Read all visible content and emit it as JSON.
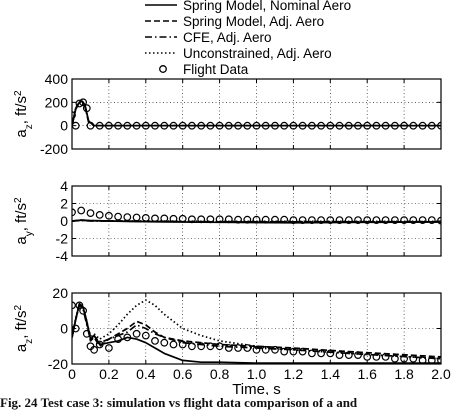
{
  "legend": {
    "placement": "top",
    "entries": [
      {
        "label": "Spring Model, Nominal Aero",
        "style": "solid"
      },
      {
        "label": "Spring Model, Adj. Aero",
        "style": "dashed"
      },
      {
        "label": "CFE, Adj. Aero",
        "style": "dashdot"
      },
      {
        "label": "Unconstrained, Adj. Aero",
        "style": "dotted"
      },
      {
        "label": "Flight Data",
        "style": "circle"
      }
    ]
  },
  "caption": "Fig. 24   Test case 3: simulation vs flight data comparison of a   and",
  "chart_data": [
    {
      "type": "line",
      "panel": "top",
      "ylabel_main": "a",
      "ylabel_sub": "z",
      "ylabel_unit": ", ft/s",
      "ylabel_sup": "2",
      "xlim": [
        0,
        2
      ],
      "ylim": [
        -200,
        400
      ],
      "yticks": [
        -200,
        0,
        200,
        400
      ],
      "xticks": [
        0,
        0.2,
        0.4,
        0.6,
        0.8,
        1.0,
        1.2,
        1.4,
        1.6,
        1.8,
        2.0
      ],
      "grid": true,
      "series": [
        {
          "style": "solid",
          "x": [
            0,
            0.02,
            0.04,
            0.055,
            0.07,
            0.09,
            0.12,
            0.2,
            2.0
          ],
          "y": [
            0,
            140,
            200,
            210,
            180,
            40,
            0,
            0,
            0
          ]
        },
        {
          "style": "dashed",
          "x": [
            0,
            0.02,
            0.04,
            0.055,
            0.07,
            0.09,
            0.12,
            0.2,
            2.0
          ],
          "y": [
            0,
            150,
            205,
            210,
            175,
            35,
            0,
            0,
            0
          ]
        },
        {
          "style": "dashdot",
          "x": [
            0,
            0.02,
            0.04,
            0.055,
            0.07,
            0.09,
            0.12,
            0.2,
            2.0
          ],
          "y": [
            0,
            145,
            200,
            205,
            170,
            30,
            0,
            0,
            0
          ]
        },
        {
          "style": "dotted",
          "x": [
            0,
            0.02,
            0.04,
            0.055,
            0.07,
            0.09,
            0.12,
            0.2,
            2.0
          ],
          "y": [
            0,
            150,
            200,
            210,
            180,
            40,
            0,
            0,
            0
          ]
        }
      ],
      "flight_data": {
        "x": [
          0,
          0.02,
          0.04,
          0.06,
          0.08,
          0.1,
          0.15,
          0.2,
          0.25,
          0.3,
          0.35,
          0.4,
          0.45,
          0.5,
          0.55,
          0.6,
          0.65,
          0.7,
          0.75,
          0.8,
          0.85,
          0.9,
          0.95,
          1.0,
          1.05,
          1.1,
          1.15,
          1.2,
          1.25,
          1.3,
          1.35,
          1.4,
          1.45,
          1.5,
          1.55,
          1.6,
          1.65,
          1.7,
          1.75,
          1.8,
          1.85,
          1.9,
          1.95,
          2.0
        ],
        "y": [
          90,
          0,
          190,
          200,
          150,
          0,
          0,
          0,
          0,
          0,
          0,
          0,
          0,
          0,
          0,
          0,
          0,
          0,
          0,
          0,
          0,
          0,
          0,
          0,
          0,
          0,
          0,
          0,
          0,
          0,
          0,
          0,
          0,
          0,
          0,
          0,
          0,
          0,
          0,
          0,
          0,
          0,
          0,
          0
        ]
      }
    },
    {
      "type": "line",
      "panel": "middle",
      "ylabel_main": "a",
      "ylabel_sub": "y",
      "ylabel_unit": ", ft/s",
      "ylabel_sup": "2",
      "xlim": [
        0,
        2
      ],
      "ylim": [
        -4,
        4
      ],
      "yticks": [
        -4,
        -2,
        0,
        2,
        4
      ],
      "xticks": [
        0,
        0.2,
        0.4,
        0.6,
        0.8,
        1.0,
        1.2,
        1.4,
        1.6,
        1.8,
        2.0
      ],
      "grid": true,
      "series": [
        {
          "style": "solid",
          "x": [
            0,
            0.05,
            0.1,
            0.2,
            0.3,
            0.5,
            0.8,
            1.2,
            1.6,
            2.0
          ],
          "y": [
            0,
            0.1,
            0.05,
            0,
            -0.05,
            -0.1,
            -0.15,
            -0.2,
            -0.15,
            -0.1
          ]
        },
        {
          "style": "dashed",
          "x": [
            0,
            0.05,
            0.1,
            0.2,
            0.4,
            0.8,
            1.2,
            1.6,
            2.0
          ],
          "y": [
            0,
            0.1,
            0.05,
            0,
            -0.05,
            -0.1,
            -0.1,
            -0.1,
            -0.1
          ]
        },
        {
          "style": "dashdot",
          "x": [
            0,
            0.05,
            0.1,
            0.2,
            0.4,
            0.8,
            1.2,
            1.6,
            2.0
          ],
          "y": [
            0,
            0.05,
            0,
            0,
            -0.05,
            -0.1,
            -0.1,
            -0.1,
            -0.1
          ]
        },
        {
          "style": "dotted",
          "x": [
            0,
            0.05,
            0.1,
            0.2,
            0.4,
            0.8,
            1.2,
            1.6,
            2.0
          ],
          "y": [
            0,
            0.1,
            0.05,
            0,
            0,
            -0.05,
            -0.05,
            -0.05,
            -0.05
          ]
        }
      ],
      "flight_data": {
        "x": [
          0,
          0.05,
          0.1,
          0.15,
          0.2,
          0.25,
          0.3,
          0.35,
          0.4,
          0.45,
          0.5,
          0.55,
          0.6,
          0.65,
          0.7,
          0.75,
          0.8,
          0.85,
          0.9,
          0.95,
          1.0,
          1.05,
          1.1,
          1.15,
          1.2,
          1.25,
          1.3,
          1.35,
          1.4,
          1.45,
          1.5,
          1.55,
          1.6,
          1.65,
          1.7,
          1.75,
          1.8,
          1.85,
          1.9,
          1.95,
          2.0
        ],
        "y": [
          1.0,
          1.2,
          0.9,
          0.7,
          0.6,
          0.5,
          0.45,
          0.4,
          0.35,
          0.3,
          0.3,
          0.25,
          0.25,
          0.2,
          0.2,
          0.2,
          0.2,
          0.2,
          0.15,
          0.15,
          0.15,
          0.15,
          0.15,
          0.15,
          0.1,
          0.1,
          0.1,
          0.1,
          0.1,
          0.1,
          0.1,
          0.1,
          0.1,
          0.1,
          0.1,
          0.1,
          0.1,
          0.1,
          0.1,
          0.1,
          0.05
        ]
      }
    },
    {
      "type": "line",
      "panel": "bottom",
      "ylabel_main": "a",
      "ylabel_sub": "z",
      "ylabel_unit": ", ft/s",
      "ylabel_sup": "2",
      "xlabel": "Time, s",
      "xlim": [
        0,
        2
      ],
      "ylim": [
        -20,
        20
      ],
      "yticks": [
        -20,
        0,
        20
      ],
      "xticks": [
        0,
        0.2,
        0.4,
        0.6,
        0.8,
        1.0,
        1.2,
        1.4,
        1.6,
        1.8,
        2.0
      ],
      "xticklabels": [
        "0",
        "0.2",
        "0.4",
        "0.6",
        "0.8",
        "1.0",
        "1.2",
        "1.4",
        "1.6",
        "1.8",
        "2.0"
      ],
      "grid": true,
      "series": [
        {
          "style": "solid",
          "x": [
            0,
            0.02,
            0.04,
            0.06,
            0.08,
            0.1,
            0.12,
            0.15,
            0.2,
            0.25,
            0.3,
            0.35,
            0.4,
            0.45,
            0.5,
            0.55,
            0.6,
            0.7,
            0.8,
            1.0,
            1.2,
            1.5,
            2.0
          ],
          "y": [
            -5,
            5,
            14,
            12,
            4,
            -6,
            -4,
            -9,
            -8,
            -7,
            -5,
            -6,
            -8,
            -11,
            -14,
            -16,
            -18,
            -19,
            -19,
            -19.5,
            -19.5,
            -19.5,
            -19.5
          ]
        },
        {
          "style": "dashed",
          "x": [
            0,
            0.02,
            0.04,
            0.06,
            0.08,
            0.1,
            0.12,
            0.15,
            0.2,
            0.25,
            0.3,
            0.35,
            0.4,
            0.45,
            0.5,
            0.6,
            0.8,
            1.0,
            1.2,
            1.5,
            2.0
          ],
          "y": [
            -5,
            5,
            14,
            12,
            3,
            -7,
            -5,
            -10,
            -6,
            -3,
            0,
            4,
            2,
            -2,
            -5,
            -7,
            -9,
            -10,
            -11,
            -13,
            -16
          ]
        },
        {
          "style": "dashdot",
          "x": [
            0,
            0.02,
            0.04,
            0.06,
            0.08,
            0.1,
            0.12,
            0.15,
            0.2,
            0.25,
            0.3,
            0.35,
            0.4,
            0.45,
            0.5,
            0.6,
            0.8,
            1.0,
            1.2,
            1.5,
            2.0
          ],
          "y": [
            -5,
            5,
            13,
            11,
            2,
            -6,
            -4,
            -8,
            -6,
            -4,
            -2,
            2,
            0,
            -3,
            -5,
            -8,
            -10,
            -11,
            -12,
            -14,
            -17
          ]
        },
        {
          "style": "dotted",
          "x": [
            0,
            0.02,
            0.04,
            0.06,
            0.08,
            0.1,
            0.12,
            0.15,
            0.2,
            0.25,
            0.3,
            0.35,
            0.4,
            0.45,
            0.5,
            0.55,
            0.6,
            0.7,
            0.8,
            1.0,
            1.2,
            1.5,
            2.0
          ],
          "y": [
            -5,
            6,
            14,
            12,
            4,
            -5,
            -3,
            -6,
            -3,
            2,
            8,
            13,
            16,
            13,
            8,
            4,
            0,
            -4,
            -7,
            -10,
            -12,
            -14,
            -17
          ]
        }
      ],
      "flight_data": {
        "x": [
          0,
          0.02,
          0.04,
          0.06,
          0.08,
          0.1,
          0.12,
          0.15,
          0.2,
          0.25,
          0.3,
          0.35,
          0.4,
          0.45,
          0.5,
          0.55,
          0.6,
          0.65,
          0.7,
          0.75,
          0.8,
          0.85,
          0.9,
          0.95,
          1.0,
          1.05,
          1.1,
          1.15,
          1.2,
          1.25,
          1.3,
          1.35,
          1.4,
          1.45,
          1.5,
          1.55,
          1.6,
          1.65,
          1.7,
          1.75,
          1.8,
          1.85,
          1.9,
          1.95,
          2.0
        ],
        "y": [
          13,
          0,
          13,
          10,
          -3,
          -10,
          -12,
          -9,
          -11,
          -6,
          -5,
          -3,
          -4,
          -7,
          -8,
          -9,
          -9,
          -10,
          -10,
          -10,
          -10,
          -11,
          -11,
          -11,
          -12,
          -12,
          -12,
          -13,
          -13,
          -13,
          -14,
          -14,
          -14,
          -15,
          -15,
          -15,
          -16,
          -16,
          -16,
          -17,
          -17,
          -17,
          -18,
          -18,
          -18
        ]
      }
    }
  ]
}
